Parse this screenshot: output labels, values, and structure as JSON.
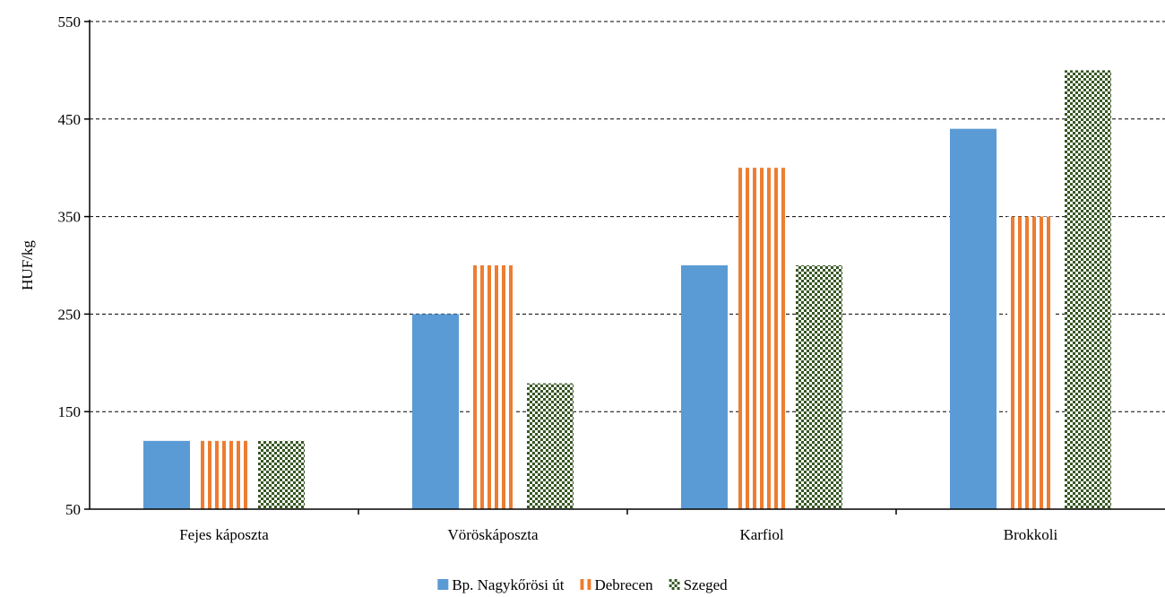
{
  "chart_data": {
    "type": "bar",
    "title": "",
    "xlabel": "",
    "ylabel": "HUF/kg",
    "ylim": [
      50,
      550
    ],
    "yticks": [
      50,
      150,
      250,
      350,
      450,
      550
    ],
    "grid": true,
    "legend_position": "bottom",
    "categories": [
      "Fejes káposzta",
      "Vöröskáposzta",
      "Karfiol",
      "Brokkoli"
    ],
    "series": [
      {
        "name": "Bp. Nagykőrösi út",
        "values": [
          120,
          250,
          300,
          440
        ],
        "color": "#5b9bd5",
        "pattern": "solid"
      },
      {
        "name": "Debrecen",
        "values": [
          120,
          300,
          400,
          350
        ],
        "color": "#ed7d31",
        "pattern": "vertical-stripes"
      },
      {
        "name": "Szeged",
        "values": [
          120,
          179,
          300,
          500
        ],
        "color": "#375623",
        "pattern": "checkerboard"
      }
    ]
  }
}
